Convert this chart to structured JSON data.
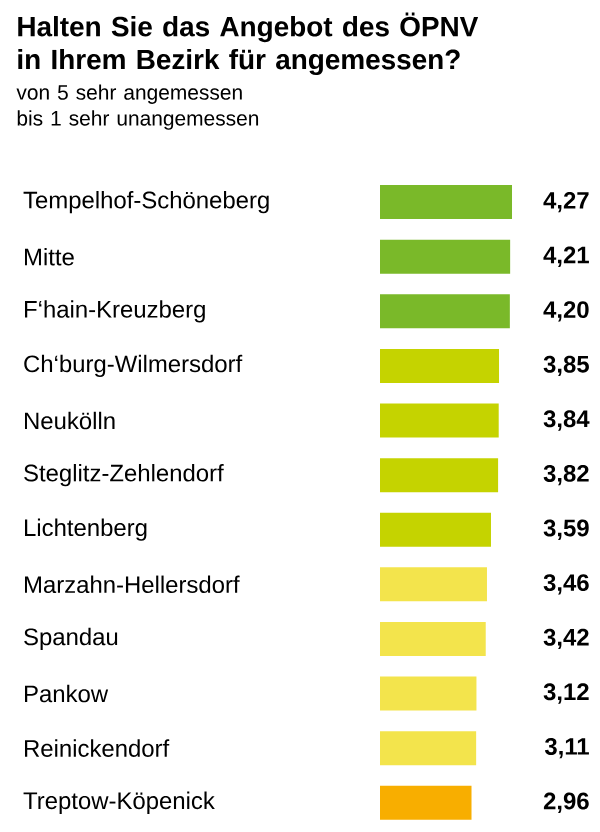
{
  "chart_data": {
    "type": "bar",
    "orientation": "horizontal",
    "title": "Halten Sie das Angebot des ÖPNV in Ihrem Bezirk für angemessen?",
    "subtitle": "von 5 sehr angemessen bis 1 sehr unangemessen",
    "categories": [
      "Tempelhof-Schöneberg",
      "Mitte",
      "F‘hain-Kreuzberg",
      "Ch‘burg-Wilmersdorf",
      "Neukölln",
      "Steglitz-Zehlendorf",
      "Lichtenberg",
      "Marzahn-Hellersdorf",
      "Spandau",
      "Pankow",
      "Reinickendorf",
      "Treptow-Köpenick"
    ],
    "values": [
      4.27,
      4.21,
      4.2,
      3.85,
      3.84,
      3.82,
      3.59,
      3.46,
      3.42,
      3.12,
      3.11,
      2.96
    ],
    "value_labels": [
      "4,27",
      "4,21",
      "4,20",
      "3,85",
      "3,84",
      "3,82",
      "3,59",
      "3,46",
      "3,42",
      "3,12",
      "3,11",
      "2,96"
    ],
    "colors": [
      "#7ab929",
      "#7ab929",
      "#7ab929",
      "#c5d300",
      "#c5d300",
      "#c5d300",
      "#c5d300",
      "#f3e44c",
      "#f3e44c",
      "#f3e44c",
      "#f3e44c",
      "#f8ae00"
    ],
    "data_labels": false
  }
}
